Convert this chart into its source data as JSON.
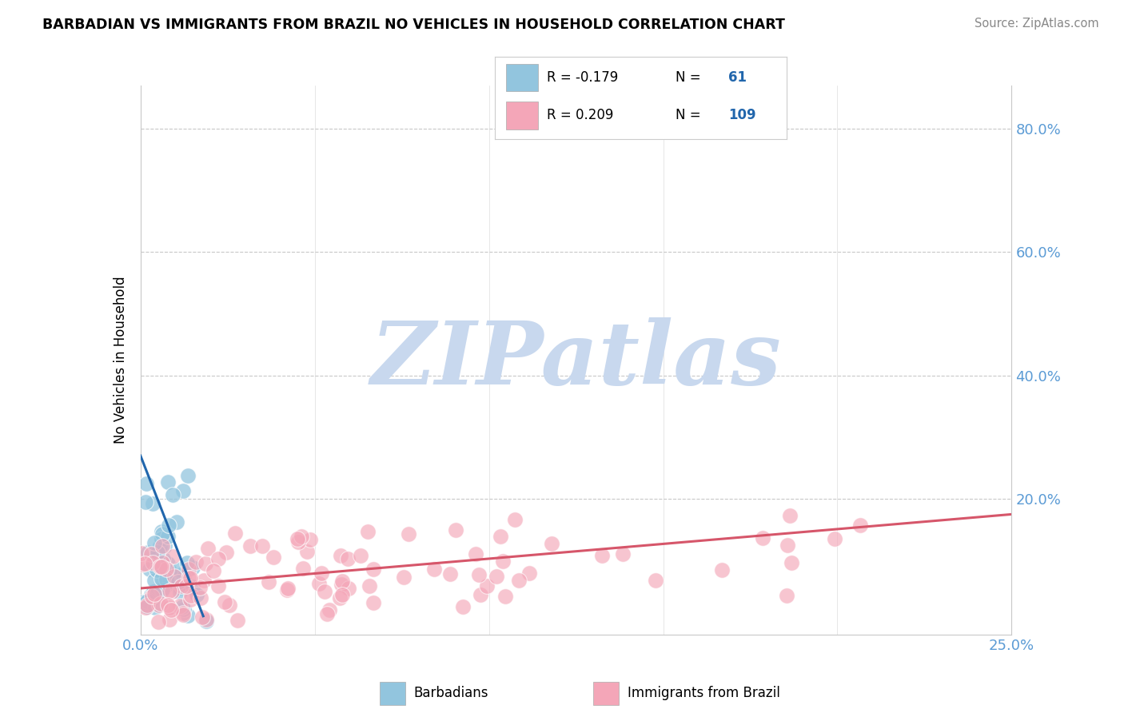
{
  "title": "BARBADIAN VS IMMIGRANTS FROM BRAZIL NO VEHICLES IN HOUSEHOLD CORRELATION CHART",
  "source": "Source: ZipAtlas.com",
  "ylabel": "No Vehicles in Household",
  "xlim": [
    0.0,
    0.25
  ],
  "ylim": [
    -0.02,
    0.87
  ],
  "color_blue": "#92c5de",
  "color_pink": "#f4a6b8",
  "color_blue_line": "#2166ac",
  "color_pink_line": "#d6566a",
  "color_legend_text": "#2166ac",
  "color_axis_text": "#5b9bd5",
  "watermark_text": "ZIPatlas",
  "watermark_color": "#c8d8ee",
  "background_color": "#ffffff",
  "grid_color": "#c8c8c8",
  "trend_blue_x0": 0.0,
  "trend_blue_y0": 0.27,
  "trend_blue_x1": 0.018,
  "trend_blue_y1": 0.01,
  "trend_pink_x0": 0.0,
  "trend_pink_y0": 0.055,
  "trend_pink_x1": 0.25,
  "trend_pink_y1": 0.175
}
